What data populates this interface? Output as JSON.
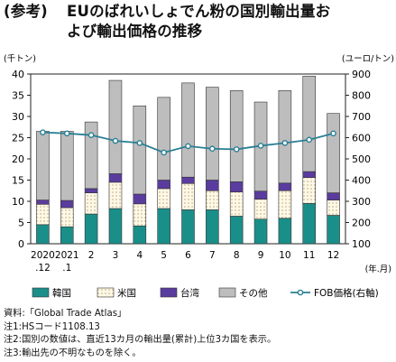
{
  "title_tag": "(参考)",
  "title_line1": "EUのばれいしょでん粉の国別輸出量お",
  "title_line2": "よび輸出価格の推移",
  "chart_data": {
    "type": "bar",
    "stacked": true,
    "categories": [
      "2020\n.12",
      "2021\n.1",
      "2",
      "3",
      "4",
      "5",
      "6",
      "7",
      "8",
      "9",
      "10",
      "11",
      "12"
    ],
    "x_unit_label": "(年.月)",
    "left_axis": {
      "unit_label": "(千トン)",
      "ylim": [
        0,
        40
      ],
      "ticks": [
        0,
        5,
        10,
        15,
        20,
        25,
        30,
        35,
        40
      ]
    },
    "right_axis": {
      "unit_label": "(ユーロ/トン)",
      "ylim": [
        100,
        900
      ],
      "ticks": [
        100,
        200,
        300,
        400,
        500,
        600,
        700,
        800,
        900
      ]
    },
    "series": [
      {
        "name": "韓国",
        "kind": "bar",
        "color": "#1a8f8a",
        "values": [
          4.5,
          4.0,
          7.0,
          8.3,
          4.2,
          8.3,
          8.0,
          8.0,
          6.5,
          5.8,
          6.0,
          9.5,
          6.7
        ]
      },
      {
        "name": "米国",
        "kind": "bar",
        "color": "#fff8e4",
        "values": [
          4.8,
          4.5,
          5.0,
          6.2,
          5.2,
          4.7,
          6.2,
          4.5,
          5.7,
          4.7,
          6.5,
          6.1,
          3.6
        ]
      },
      {
        "name": "台湾",
        "kind": "bar",
        "color": "#5a3c9e",
        "values": [
          1.0,
          1.7,
          1.0,
          2.0,
          2.3,
          2.0,
          1.5,
          2.5,
          2.4,
          1.9,
          1.8,
          1.4,
          1.7
        ]
      },
      {
        "name": "その他",
        "kind": "bar",
        "color": "#bdbdbd",
        "values": [
          16.2,
          16.3,
          15.7,
          22.0,
          20.8,
          19.5,
          22.2,
          21.9,
          21.5,
          21.0,
          21.8,
          22.5,
          18.7
        ]
      },
      {
        "name": "FOB価格(右軸)",
        "kind": "line",
        "axis": "right",
        "color": "#2a7f95",
        "values": [
          625,
          620,
          612,
          585,
          575,
          530,
          560,
          548,
          545,
          562,
          575,
          590,
          620
        ]
      }
    ],
    "grid": false,
    "legend_position": "bottom"
  },
  "notes": [
    "資料:「Global Trade Atlas」",
    "注1:HSコード1108.13",
    "注2:国別の数値は、直近13カ月の輸出量(累計)上位3カ国を表示。",
    "注3:輸出先の不明なものを除く。"
  ]
}
